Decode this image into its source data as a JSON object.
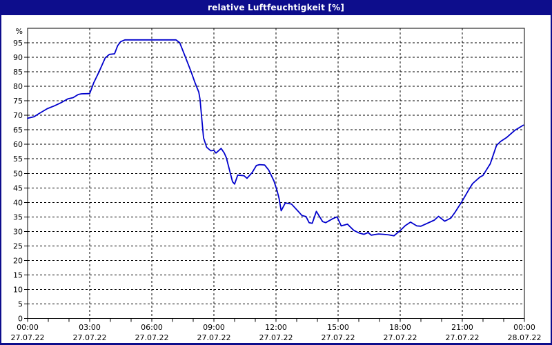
{
  "window": {
    "title": "relative Luftfeuchtigkeit [%]",
    "frame_color": "#0d0d8c",
    "title_text_color": "#ffffff",
    "background_color": "#ffffff"
  },
  "chart_data": {
    "type": "line",
    "title": "relative Luftfeuchtigkeit [%]",
    "ylabel": "%",
    "xlabel": "",
    "ylim": [
      0,
      100
    ],
    "xlim_hours": [
      0,
      24
    ],
    "grid": "dashed",
    "legend": "none",
    "line_color": "#0000cc",
    "grid_color": "#000000",
    "axis_color": "#000000",
    "tick_text_color": "#000000",
    "y_ticks": [
      0,
      5,
      10,
      15,
      20,
      25,
      30,
      35,
      40,
      45,
      50,
      55,
      60,
      65,
      70,
      75,
      80,
      85,
      90,
      95
    ],
    "y_unit_label": "%",
    "x_minor_tick_every_hours": 1,
    "x_major_ticks": [
      {
        "hour": 0,
        "time": "00:00",
        "date": "27.07.22"
      },
      {
        "hour": 3,
        "time": "03:00",
        "date": "27.07.22"
      },
      {
        "hour": 6,
        "time": "06:00",
        "date": "27.07.22"
      },
      {
        "hour": 9,
        "time": "09:00",
        "date": "27.07.22"
      },
      {
        "hour": 12,
        "time": "12:00",
        "date": "27.07.22"
      },
      {
        "hour": 15,
        "time": "15:00",
        "date": "27.07.22"
      },
      {
        "hour": 18,
        "time": "18:00",
        "date": "27.07.22"
      },
      {
        "hour": 21,
        "time": "21:00",
        "date": "27.07.22"
      },
      {
        "hour": 24,
        "time": "00:00",
        "date": "28.07.22"
      }
    ],
    "series": [
      {
        "name": "relative Luftfeuchtigkeit",
        "points_hour_value": [
          [
            0.0,
            69
          ],
          [
            0.3,
            69.5
          ],
          [
            0.55,
            70.6
          ],
          [
            0.95,
            72.3
          ],
          [
            1.3,
            73.3
          ],
          [
            1.6,
            74.3
          ],
          [
            1.95,
            75.7
          ],
          [
            2.2,
            76.1
          ],
          [
            2.45,
            77.2
          ],
          [
            2.6,
            77.4
          ],
          [
            3.0,
            77.5
          ],
          [
            3.2,
            81.3
          ],
          [
            3.45,
            85
          ],
          [
            3.75,
            89.8
          ],
          [
            3.95,
            91
          ],
          [
            4.2,
            91.2
          ],
          [
            4.35,
            94
          ],
          [
            4.5,
            95.4
          ],
          [
            4.7,
            96
          ],
          [
            7.17,
            96
          ],
          [
            7.35,
            95
          ],
          [
            7.6,
            90.5
          ],
          [
            7.9,
            85
          ],
          [
            8.1,
            81
          ],
          [
            8.27,
            78
          ],
          [
            8.33,
            75.5
          ],
          [
            8.5,
            62.2
          ],
          [
            8.65,
            59
          ],
          [
            8.85,
            57.8
          ],
          [
            9.0,
            57.9
          ],
          [
            9.1,
            57
          ],
          [
            9.35,
            58.6
          ],
          [
            9.5,
            57
          ],
          [
            9.6,
            55.4
          ],
          [
            9.9,
            47.1
          ],
          [
            10.0,
            46.3
          ],
          [
            10.15,
            49.4
          ],
          [
            10.45,
            49.2
          ],
          [
            10.6,
            48.3
          ],
          [
            10.85,
            50.3
          ],
          [
            11.05,
            52.7
          ],
          [
            11.2,
            53
          ],
          [
            11.45,
            52.9
          ],
          [
            11.65,
            51.1
          ],
          [
            11.9,
            47.4
          ],
          [
            12.05,
            44.1
          ],
          [
            12.15,
            41.3
          ],
          [
            12.25,
            37.1
          ],
          [
            12.45,
            39.8
          ],
          [
            12.75,
            39.4
          ],
          [
            13.05,
            37.1
          ],
          [
            13.25,
            35.5
          ],
          [
            13.45,
            35.1
          ],
          [
            13.6,
            33
          ],
          [
            13.75,
            32.8
          ],
          [
            13.95,
            36.9
          ],
          [
            14.25,
            33.4
          ],
          [
            14.4,
            33
          ],
          [
            14.75,
            34.4
          ],
          [
            14.95,
            35
          ],
          [
            15.15,
            31.9
          ],
          [
            15.35,
            32.3
          ],
          [
            15.45,
            32.5
          ],
          [
            15.75,
            30.4
          ],
          [
            16.0,
            29.5
          ],
          [
            16.25,
            29
          ],
          [
            16.45,
            29.6
          ],
          [
            16.6,
            28.7
          ],
          [
            16.95,
            29.1
          ],
          [
            17.2,
            29
          ],
          [
            17.45,
            28.8
          ],
          [
            17.7,
            28.5
          ],
          [
            18.0,
            30.3
          ],
          [
            18.25,
            32
          ],
          [
            18.5,
            33.2
          ],
          [
            18.8,
            31.9
          ],
          [
            19.0,
            31.8
          ],
          [
            19.65,
            33.9
          ],
          [
            19.85,
            35.2
          ],
          [
            20.15,
            33.5
          ],
          [
            20.45,
            34.6
          ],
          [
            20.65,
            36.6
          ],
          [
            21.0,
            40.5
          ],
          [
            21.35,
            44.8
          ],
          [
            21.5,
            46.5
          ],
          [
            21.85,
            48.7
          ],
          [
            22.0,
            49.3
          ],
          [
            22.35,
            53.3
          ],
          [
            22.65,
            59.6
          ],
          [
            22.85,
            61
          ],
          [
            23.15,
            62.4
          ],
          [
            23.55,
            64.9
          ],
          [
            23.95,
            66.6
          ]
        ]
      }
    ]
  }
}
